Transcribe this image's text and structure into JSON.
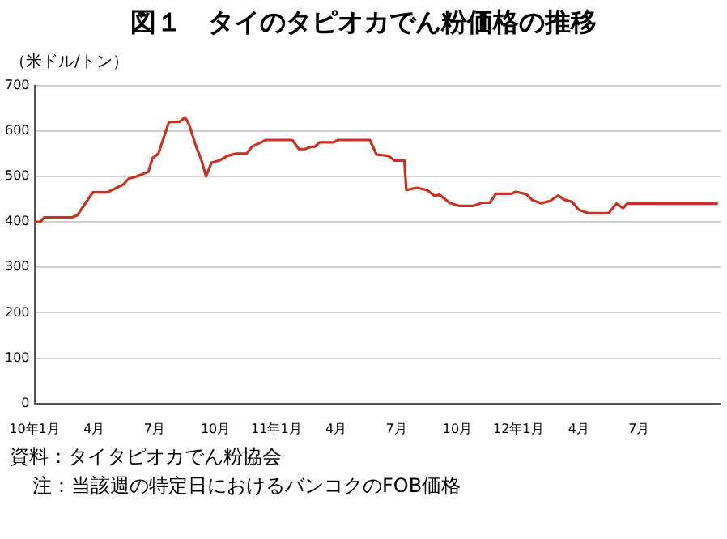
{
  "chart_data": {
    "type": "line",
    "title": "図１　タイのタピオカでん粉価格の推移",
    "ylabel": "（米ドル/トン）",
    "annotations": [
      "資料：タイタピオカでん粉協会",
      "注：当該週の特定日におけるバンコクのFOB価格"
    ],
    "x": [
      "2010-01-01",
      "2010-01-10",
      "2010-01-16",
      "2010-02-27",
      "2010-03-07",
      "2010-03-30",
      "2010-04-21",
      "2010-05-15",
      "2010-05-23",
      "2010-06-04",
      "2010-06-22",
      "2010-06-28",
      "2010-07-07",
      "2010-07-23",
      "2010-08-08",
      "2010-08-16",
      "2010-08-22",
      "2010-09-01",
      "2010-09-10",
      "2010-09-17",
      "2010-09-25",
      "2010-10-07",
      "2010-10-19",
      "2010-11-01",
      "2010-11-17",
      "2010-11-25",
      "2010-12-16",
      "2011-01-25",
      "2011-02-04",
      "2011-02-13",
      "2011-02-22",
      "2011-02-28",
      "2011-03-07",
      "2011-03-28",
      "2011-04-04",
      "2011-05-22",
      "2011-06-01",
      "2011-06-19",
      "2011-06-28",
      "2011-07-13",
      "2011-07-16",
      "2011-08-01",
      "2011-08-16",
      "2011-08-28",
      "2011-09-04",
      "2011-09-19",
      "2011-10-04",
      "2011-10-25",
      "2011-11-07",
      "2011-11-19",
      "2011-11-28",
      "2011-12-22",
      "2011-12-28",
      "2012-01-13",
      "2012-01-22",
      "2012-02-04",
      "2012-02-18",
      "2012-03-01",
      "2012-03-10",
      "2012-03-22",
      "2012-04-01",
      "2012-04-16",
      "2012-05-16",
      "2012-05-28",
      "2012-06-07",
      "2012-06-13",
      "2012-10-28"
    ],
    "series": [
      {
        "color": "#c8321e",
        "values": [
          400,
          400,
          410,
          410,
          415,
          465,
          465,
          482,
          495,
          500,
          510,
          540,
          550,
          620,
          620,
          630,
          615,
          570,
          535,
          500,
          530,
          535,
          545,
          550,
          550,
          565,
          580,
          580,
          560,
          560,
          565,
          565,
          575,
          575,
          580,
          580,
          548,
          545,
          535,
          535,
          470,
          475,
          470,
          457,
          460,
          442,
          435,
          435,
          442,
          442,
          462,
          462,
          466,
          461,
          448,
          441,
          446,
          458,
          449,
          444,
          427,
          419,
          419,
          440,
          430,
          440,
          440
        ]
      }
    ],
    "xlim": [
      "2010-01-01",
      "2012-11-01"
    ],
    "xticks": [
      {
        "value": "2010-01-01",
        "label": "10年1月"
      },
      {
        "value": "2010-04-01",
        "label": "4月"
      },
      {
        "value": "2010-07-01",
        "label": "7月"
      },
      {
        "value": "2010-10-01",
        "label": "10月"
      },
      {
        "value": "2011-01-01",
        "label": "11年1月"
      },
      {
        "value": "2011-04-01",
        "label": "4月"
      },
      {
        "value": "2011-07-01",
        "label": "7月"
      },
      {
        "value": "2011-10-01",
        "label": "10月"
      },
      {
        "value": "2012-01-01",
        "label": "12年1月"
      },
      {
        "value": "2012-04-01",
        "label": "4月"
      },
      {
        "value": "2012-07-01",
        "label": "7月"
      }
    ],
    "ylim": [
      0,
      700
    ],
    "yticks": [
      0,
      100,
      200,
      300,
      400,
      500,
      600,
      700
    ],
    "grid": "y",
    "legend": false,
    "marker": "none",
    "line_style": "solid"
  }
}
